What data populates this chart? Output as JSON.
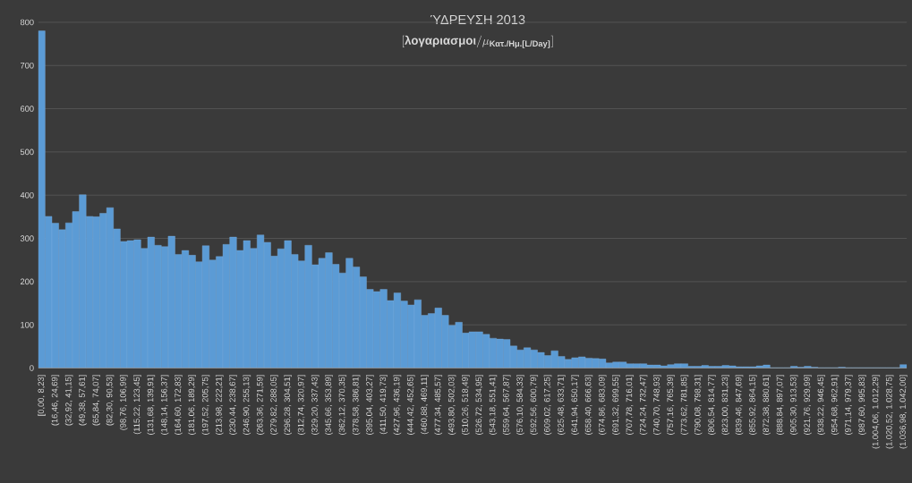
{
  "chart_data": {
    "type": "bar",
    "title": "ΎΔΡΕΥΣΗ 2013",
    "subtitle": "[\\text{λογαριασμοι}/\\mu_{\\text{Κατ./Ημ.[L/Day]}}]",
    "categories": [
      "[0,00, 8,23]",
      null,
      "(16,46, 24,69]",
      null,
      "(32,92, 41,15]",
      null,
      "(49,38, 57,61]",
      null,
      "(65,84, 74,07]",
      null,
      "(82,30, 90,53]",
      null,
      "(98,76, 106,99]",
      null,
      "(115,22, 123,45]",
      null,
      "(131,68, 139,91]",
      null,
      "(148,14, 156,37]",
      null,
      "(164,60, 172,83]",
      null,
      "(181,06, 189,29]",
      null,
      "(197,52, 205,75]",
      null,
      "(213,98, 222,21]",
      null,
      "(230,44, 238,67]",
      null,
      "(246,90, 255,13]",
      null,
      "(263,36, 271,59]",
      null,
      "(279,82, 288,05]",
      null,
      "(296,28, 304,51]",
      null,
      "(312,74, 320,97]",
      null,
      "(329,20, 337,43]",
      null,
      "(345,66, 353,89]",
      null,
      "(362,12, 370,35]",
      null,
      "(378,58, 386,81]",
      null,
      "(395,04, 403,27]",
      null,
      "(411,50, 419,73]",
      null,
      "(427,96, 436,19]",
      null,
      "(444,42, 452,65]",
      null,
      "(460,88, 469,11]",
      null,
      "(477,34, 485,57]",
      null,
      "(493,80, 502,03]",
      null,
      "(510,26, 518,49]",
      null,
      "(526,72, 534,95]",
      null,
      "(543,18, 551,41]",
      null,
      "(559,64, 567,87]",
      null,
      "(576,10, 584,33]",
      null,
      "(592,56, 600,79]",
      null,
      "(609,02, 617,25]",
      null,
      "(625,48, 633,71]",
      null,
      "(641,94, 650,17]",
      null,
      "(658,40, 666,63]",
      null,
      "(674,86, 683,09]",
      null,
      "(691,32, 699,55]",
      null,
      "(707,78, 716,01]",
      null,
      "(724,24, 732,47]",
      null,
      "(740,70, 748,93]",
      null,
      "(757,16, 765,39]",
      null,
      "(773,62, 781,85]",
      null,
      "(790,08, 798,31]",
      null,
      "(806,54, 814,77]",
      null,
      "(823,00, 831,23]",
      null,
      "(839,46, 847,69]",
      null,
      "(855,92, 864,15]",
      null,
      "(872,38, 880,61]",
      null,
      "(888,84, 897,07]",
      null,
      "(905,30, 913,53]",
      null,
      "(921,76, 929,99]",
      null,
      "(938,22, 946,45]",
      null,
      "(954,68, 962,91]",
      null,
      "(971,14, 979,37]",
      null,
      "(987,60, 995,83]",
      null,
      "(1.004,06, 1.012,29]",
      null,
      "(1.020,52, 1.028,75]",
      null,
      "(1.036,98, 1.042,00]"
    ],
    "values": [
      780,
      351,
      335,
      320,
      336,
      362,
      401,
      351,
      350,
      358,
      371,
      322,
      293,
      295,
      297,
      277,
      303,
      284,
      281,
      305,
      263,
      272,
      261,
      246,
      283,
      250,
      258,
      286,
      303,
      272,
      295,
      277,
      308,
      291,
      259,
      276,
      295,
      263,
      248,
      284,
      239,
      254,
      267,
      240,
      220,
      254,
      234,
      211,
      182,
      177,
      182,
      156,
      174,
      155,
      146,
      158,
      122,
      126,
      139,
      122,
      99,
      106,
      81,
      84,
      84,
      78,
      69,
      67,
      66,
      51,
      42,
      47,
      42,
      36,
      29,
      40,
      27,
      20,
      24,
      26,
      23,
      22,
      21,
      12,
      14,
      14,
      10,
      10,
      10,
      7,
      7,
      5,
      8,
      10,
      10,
      4,
      4,
      6,
      4,
      4,
      6,
      5,
      3,
      3,
      3,
      5,
      7,
      1,
      1,
      1,
      4,
      2,
      4,
      2,
      1,
      1,
      1,
      2,
      1,
      1,
      1,
      1,
      1,
      1,
      1,
      1,
      8
    ],
    "color": "#5b9bd5",
    "ylim": [
      0,
      800
    ],
    "yticks": [
      0,
      100,
      200,
      300,
      400,
      500,
      600,
      700,
      800
    ],
    "grid": "y"
  }
}
